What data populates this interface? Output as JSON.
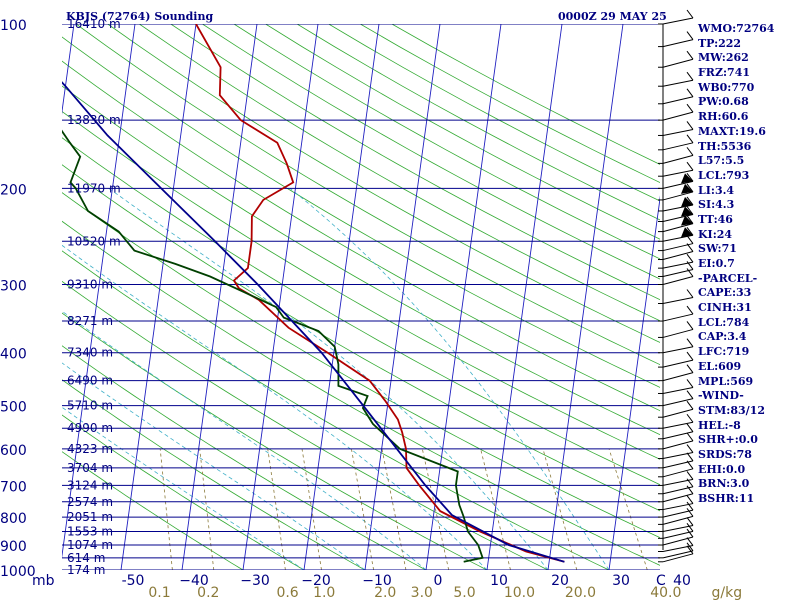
{
  "header": {
    "station": "KBJS (72764) Sounding",
    "time": "0000Z 29 MAY 25"
  },
  "indices": [
    "WMO:72764",
    "TP:222",
    "MW:262",
    "FRZ:741",
    "WB0:770",
    "PW:0.68",
    "RH:60.6",
    "MAXT:19.6",
    "TH:5536",
    "L57:5.5",
    "LCL:793",
    "LI:3.4",
    "SI:4.3",
    "TT:46",
    "KI:24",
    "SW:71",
    "EI:0.7",
    "-PARCEL-",
    "CAPE:33",
    "CINH:31",
    "LCL:784",
    "CAP:3.4",
    "LFC:719",
    "EL:609",
    "MPL:569",
    "-WIND-",
    "STM:83/12",
    "HEL:-8",
    "SHR+:0.0",
    "SRDS:78",
    "EHI:0.0",
    "BRN:3.0",
    "BSHR:11"
  ],
  "chart_data": {
    "type": "line",
    "title": "KBJS (72764) Sounding 0000Z 29 MAY 25",
    "xlabel": "",
    "ylabel": "mb",
    "y_scale": "log",
    "ylim": [
      1000,
      100
    ],
    "xlim": [
      -50,
      50
    ],
    "pressure_ticks": [
      100,
      200,
      300,
      400,
      500,
      600,
      700,
      800,
      900,
      1000
    ],
    "pressure_tick_labels": [
      "100",
      "200",
      "300",
      "400",
      "500",
      "600",
      "700",
      "800",
      "900",
      "1000"
    ],
    "temp_ticks": [
      -50,
      -40,
      -30,
      -20,
      -10,
      0,
      10,
      20,
      30,
      40
    ],
    "temp_tick_labels": [
      "-50",
      "−40",
      "−30",
      "−20",
      "−10",
      "0",
      "10",
      "20",
      "30",
      "40"
    ],
    "temp_axis_prefix": "mb",
    "mixing_ratio_labels": [
      {
        "text": "0.1",
        "x": -45
      },
      {
        "text": "0.2",
        "x": -37
      },
      {
        "text": "0.6",
        "x": -24
      },
      {
        "text": "1.0",
        "x": -18
      },
      {
        "text": "2.0",
        "x": -8
      },
      {
        "text": "3.0",
        "x": -2
      },
      {
        "text": "5.0",
        "x": 5
      },
      {
        "text": "10.0",
        "x": 14
      },
      {
        "text": "20.0",
        "x": 24
      },
      {
        "text": "40.0",
        "x": 38
      },
      {
        "text": "g/kg",
        "x": 48
      }
    ],
    "corner_label": "C",
    "height_labels": [
      {
        "p": 100,
        "text": "16410 m"
      },
      {
        "p": 150,
        "text": "13830 m"
      },
      {
        "p": 200,
        "text": "11970 m"
      },
      {
        "p": 250,
        "text": "10520 m"
      },
      {
        "p": 300,
        "text": "9310 m"
      },
      {
        "p": 350,
        "text": "8271 m"
      },
      {
        "p": 400,
        "text": "7340 m"
      },
      {
        "p": 450,
        "text": "6490 m"
      },
      {
        "p": 500,
        "text": "5710 m"
      },
      {
        "p": 550,
        "text": "4990 m"
      },
      {
        "p": 600,
        "text": "4323 m"
      },
      {
        "p": 650,
        "text": "3704 m"
      },
      {
        "p": 700,
        "text": "3124 m"
      },
      {
        "p": 750,
        "text": "2574 m"
      },
      {
        "p": 800,
        "text": "2051 m"
      },
      {
        "p": 850,
        "text": "1553 m"
      },
      {
        "p": 900,
        "text": "1074 m"
      },
      {
        "p": 950,
        "text": "614 m"
      },
      {
        "p": 1000,
        "text": "174 m"
      }
    ],
    "series": [
      {
        "color": "#b00000",
        "points": [
          [
            966,
            22.5
          ],
          [
            925,
            16
          ],
          [
            850,
            8
          ],
          [
            780,
            1
          ],
          [
            700,
            -3
          ],
          [
            650,
            -5.5
          ],
          [
            600,
            -6
          ],
          [
            560,
            -7
          ],
          [
            530,
            -8
          ],
          [
            490,
            -10.5
          ],
          [
            450,
            -13.5
          ],
          [
            400,
            -21
          ],
          [
            360,
            -28
          ],
          [
            320,
            -33.5
          ],
          [
            305,
            -37
          ],
          [
            295,
            -38
          ],
          [
            280,
            -36
          ],
          [
            250,
            -36
          ],
          [
            225,
            -36.5
          ],
          [
            210,
            -35
          ],
          [
            195,
            -30.5
          ],
          [
            180,
            -32
          ],
          [
            165,
            -34
          ],
          [
            150,
            -40.5
          ],
          [
            135,
            -44.5
          ],
          [
            120,
            -45
          ],
          [
            100,
            -50
          ]
        ]
      },
      {
        "color": "#004000",
        "points": [
          [
            966,
            6
          ],
          [
            950,
            9
          ],
          [
            900,
            8
          ],
          [
            850,
            6
          ],
          [
            800,
            5
          ],
          [
            760,
            4
          ],
          [
            700,
            3
          ],
          [
            660,
            3
          ],
          [
            600,
            -7
          ],
          [
            540,
            -12
          ],
          [
            505,
            -14
          ],
          [
            480,
            -13.5
          ],
          [
            460,
            -18.5
          ],
          [
            420,
            -19
          ],
          [
            390,
            -20
          ],
          [
            365,
            -23
          ],
          [
            345,
            -29
          ],
          [
            330,
            -30.5
          ],
          [
            310,
            -36
          ],
          [
            290,
            -42
          ],
          [
            275,
            -48
          ],
          [
            260,
            -55
          ],
          [
            240,
            -58
          ],
          [
            220,
            -63.5
          ],
          [
            200,
            -66
          ],
          [
            195,
            -67
          ],
          [
            175,
            -66
          ],
          [
            165,
            -68
          ],
          [
            155,
            -70
          ],
          [
            145,
            -74
          ],
          [
            130,
            -78
          ],
          [
            100,
            -83
          ]
        ]
      },
      {
        "color": "#00008b",
        "points": [
          [
            966,
            22.5
          ],
          [
            900,
            13
          ],
          [
            793,
            3
          ],
          [
            700,
            -2
          ],
          [
            600,
            -7.5
          ],
          [
            500,
            -14
          ],
          [
            400,
            -22
          ],
          [
            300,
            -34
          ],
          [
            250,
            -42
          ],
          [
            200,
            -52
          ],
          [
            160,
            -62
          ],
          [
            130,
            -70
          ],
          [
            110,
            -77
          ],
          [
            100,
            -80
          ]
        ]
      }
    ],
    "wind_pressures": [
      966,
      950,
      925,
      900,
      875,
      850,
      825,
      800,
      775,
      750,
      725,
      700,
      675,
      650,
      625,
      600,
      575,
      550,
      525,
      500,
      475,
      450,
      425,
      400,
      375,
      350,
      325,
      300,
      290,
      280,
      270,
      260,
      250,
      240,
      230,
      220,
      210,
      200,
      190,
      180,
      170,
      160,
      150,
      140,
      130,
      120,
      110,
      100
    ]
  }
}
